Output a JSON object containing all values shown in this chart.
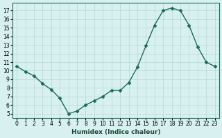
{
  "x": [
    0,
    1,
    2,
    3,
    4,
    5,
    6,
    7,
    8,
    9,
    10,
    11,
    12,
    13,
    14,
    15,
    16,
    17,
    18,
    19,
    20,
    21,
    22,
    23
  ],
  "y": [
    10.5,
    9.9,
    9.4,
    8.5,
    7.8,
    6.8,
    5.0,
    5.3,
    6.0,
    6.5,
    7.0,
    7.7,
    7.7,
    8.6,
    10.4,
    12.9,
    15.3,
    17.0,
    17.3,
    17.0,
    15.3,
    12.8,
    11.0,
    10.5
  ],
  "xlabel": "Humidex (Indice chaleur)",
  "xlim": [
    -0.5,
    23.5
  ],
  "ylim": [
    4.5,
    17.9
  ],
  "line_color": "#1a6b5a",
  "marker_color": "#1a6b5a",
  "bg_color": "#d8f0f0",
  "grid_color": "#b0d8d8",
  "xticks": [
    0,
    1,
    2,
    3,
    4,
    5,
    6,
    7,
    8,
    9,
    10,
    11,
    12,
    13,
    14,
    15,
    16,
    17,
    18,
    19,
    20,
    21,
    22,
    23
  ],
  "yticks": [
    5,
    6,
    7,
    8,
    9,
    10,
    11,
    12,
    13,
    14,
    15,
    16,
    17
  ]
}
